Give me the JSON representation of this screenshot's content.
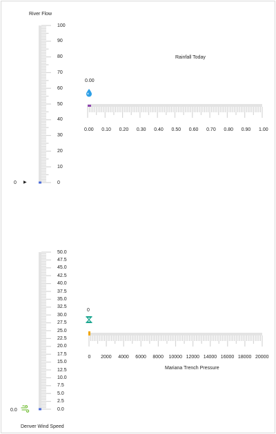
{
  "colors": {
    "track": "#e3e3e3",
    "tick": "#d6d6d6",
    "label": "#222222",
    "river_marker": "#4b6bd9",
    "rain_marker": "#8e44ad",
    "rain_icon": "#2e9fe6",
    "pressure_marker": "#f0a500",
    "pressure_icon": "#1aa58f",
    "wind_icon": "#7cc243"
  },
  "river_flow": {
    "title": "River Flow",
    "value_text": "0",
    "ticks": [
      "100",
      "90",
      "80",
      "70",
      "60",
      "50",
      "40",
      "30",
      "20",
      "10",
      "0"
    ],
    "value": 0,
    "min": 0,
    "max": 100,
    "pointer_icon": "triangle-right-icon"
  },
  "rainfall_today": {
    "title": "Rainfall Today",
    "value_text": "0.00",
    "ticks": [
      "0.00",
      "0.10",
      "0.20",
      "0.30",
      "0.40",
      "0.50",
      "0.60",
      "0.70",
      "0.80",
      "0.90",
      "1.00"
    ],
    "value": 0,
    "min": 0,
    "max": 1,
    "icon": "raindrop-icon"
  },
  "mariana_trench_pressure": {
    "title": "Mariana Trench Pressure",
    "value_text": "0",
    "ticks": [
      "0",
      "2000",
      "4000",
      "6000",
      "8000",
      "10000",
      "12000",
      "14000",
      "16000",
      "18000",
      "20000"
    ],
    "value": 0,
    "min": 0,
    "max": 20000,
    "icon": "hourglass-icon"
  },
  "denver_wind_speed": {
    "title": "Denver Wind Speed",
    "value_text": "0.0",
    "ticks": [
      "50.0",
      "47.5",
      "45.0",
      "42.5",
      "40.0",
      "37.5",
      "35.0",
      "32.5",
      "30.0",
      "27.5",
      "25.0",
      "22.5",
      "20.0",
      "17.5",
      "15.0",
      "12.5",
      "10.0",
      "7.5",
      "5.0",
      "2.5",
      "0.0"
    ],
    "value": 0,
    "min": 0,
    "max": 50,
    "icon": "wind-icon"
  }
}
